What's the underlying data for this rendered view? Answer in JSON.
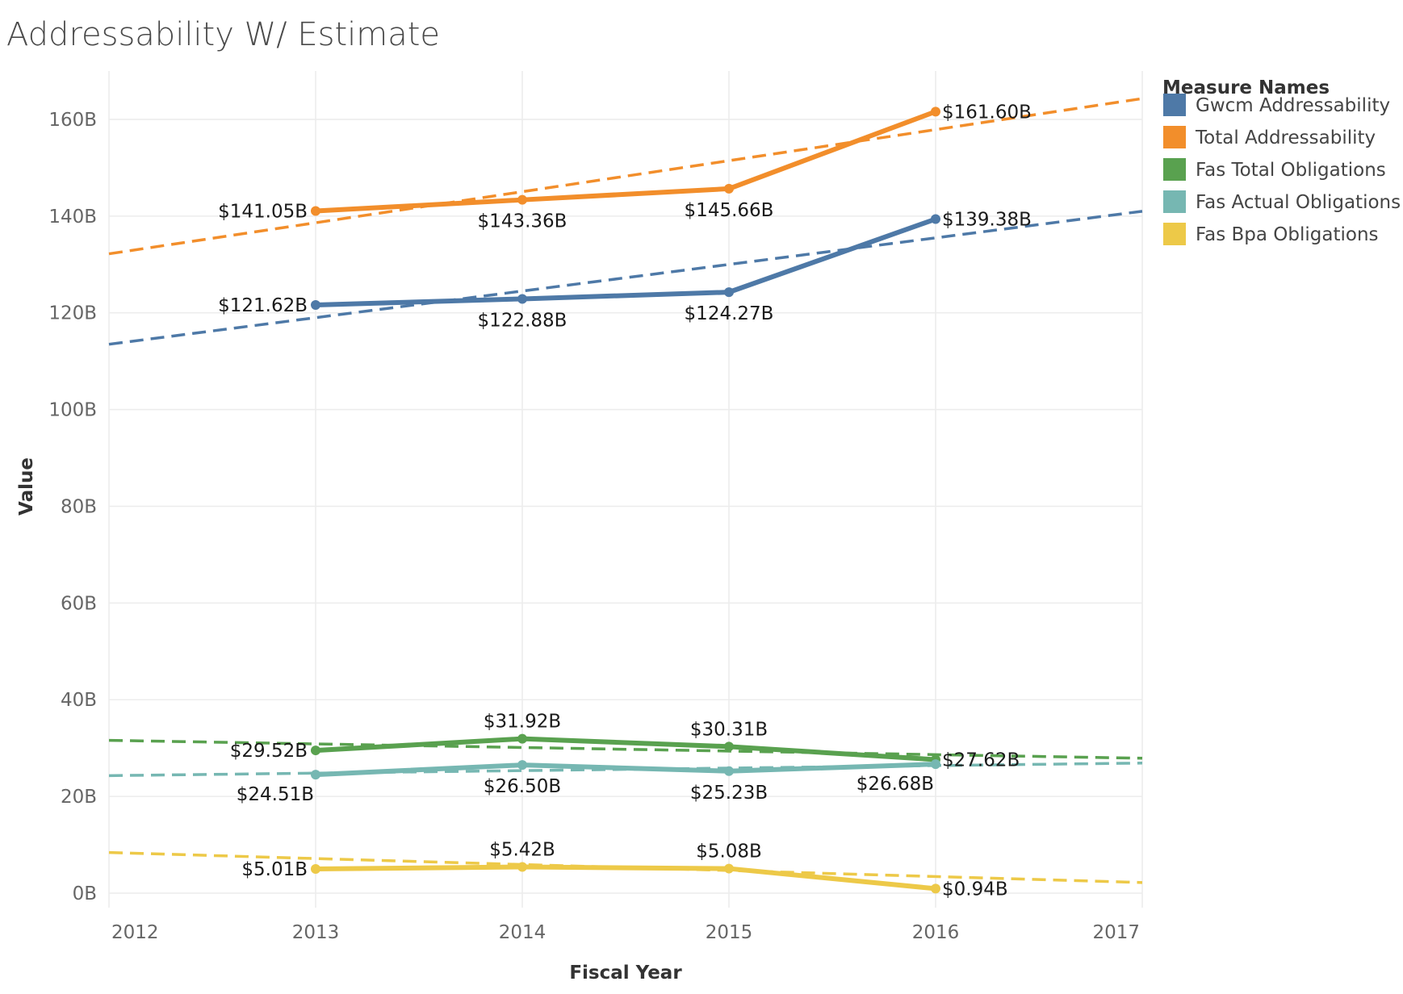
{
  "chart_data": {
    "type": "line",
    "title": "Addressability W/ Estimate",
    "xlabel": "Fiscal Year",
    "ylabel": "Value",
    "xlim": [
      2012,
      2017
    ],
    "ylim": [
      -3,
      170
    ],
    "x_ticks": [
      {
        "value": 2012,
        "label": "2012"
      },
      {
        "value": 2013,
        "label": "2013"
      },
      {
        "value": 2014,
        "label": "2014"
      },
      {
        "value": 2015,
        "label": "2015"
      },
      {
        "value": 2016,
        "label": "2016"
      },
      {
        "value": 2017,
        "label": "2017"
      }
    ],
    "y_ticks": [
      {
        "value": 0,
        "label": "0B"
      },
      {
        "value": 20,
        "label": "20B"
      },
      {
        "value": 40,
        "label": "40B"
      },
      {
        "value": 60,
        "label": "60B"
      },
      {
        "value": 80,
        "label": "80B"
      },
      {
        "value": 100,
        "label": "100B"
      },
      {
        "value": 120,
        "label": "120B"
      },
      {
        "value": 140,
        "label": "140B"
      },
      {
        "value": 160,
        "label": "160B"
      }
    ],
    "grid": true,
    "legend": {
      "title": "Measure Names",
      "position": "right"
    },
    "series": [
      {
        "name": "Gwcm Addressability",
        "color": "#4e79a7",
        "x": [
          2013,
          2014,
          2015,
          2016
        ],
        "values": [
          121.62,
          122.88,
          124.27,
          139.38
        ],
        "labels": [
          "$121.62B",
          "$122.88B",
          "$124.27B",
          "$139.38B"
        ],
        "label_pos": [
          "left",
          "below",
          "below",
          "right"
        ],
        "trend": [
          113.5,
          141.0
        ]
      },
      {
        "name": "Total Addressability",
        "color": "#f28e2b",
        "x": [
          2013,
          2014,
          2015,
          2016
        ],
        "values": [
          141.05,
          143.36,
          145.66,
          161.6
        ],
        "labels": [
          "$141.05B",
          "$143.36B",
          "$145.66B",
          "$161.60B"
        ],
        "label_pos": [
          "left",
          "below",
          "below",
          "right"
        ],
        "trend": [
          132.2,
          164.3
        ]
      },
      {
        "name": "Fas Total Obligations",
        "color": "#59a14f",
        "x": [
          2013,
          2014,
          2015,
          2016
        ],
        "values": [
          29.52,
          31.92,
          30.31,
          27.62
        ],
        "labels": [
          "$29.52B",
          "$31.92B",
          "$30.31B",
          "$27.62B"
        ],
        "label_pos": [
          "left",
          "above",
          "above",
          "right"
        ],
        "trend": [
          31.6,
          27.9
        ]
      },
      {
        "name": "Fas Actual Obligations",
        "color": "#76b7b2",
        "x": [
          2013,
          2014,
          2015,
          2016
        ],
        "values": [
          24.51,
          26.5,
          25.23,
          26.68
        ],
        "labels": [
          "$24.51B",
          "$26.50B",
          "$25.23B",
          "$26.68B"
        ],
        "label_pos": [
          "below-left",
          "below",
          "below",
          "below-left"
        ],
        "trend": [
          24.3,
          26.9
        ]
      },
      {
        "name": "Fas Bpa Obligations",
        "color": "#edc948",
        "x": [
          2013,
          2014,
          2015,
          2016
        ],
        "values": [
          5.01,
          5.42,
          5.08,
          0.94
        ],
        "labels": [
          "$5.01B",
          "$5.42B",
          "$5.08B",
          "$0.94B"
        ],
        "label_pos": [
          "left",
          "above",
          "above",
          "right"
        ],
        "trend": [
          8.4,
          2.2
        ]
      }
    ]
  }
}
